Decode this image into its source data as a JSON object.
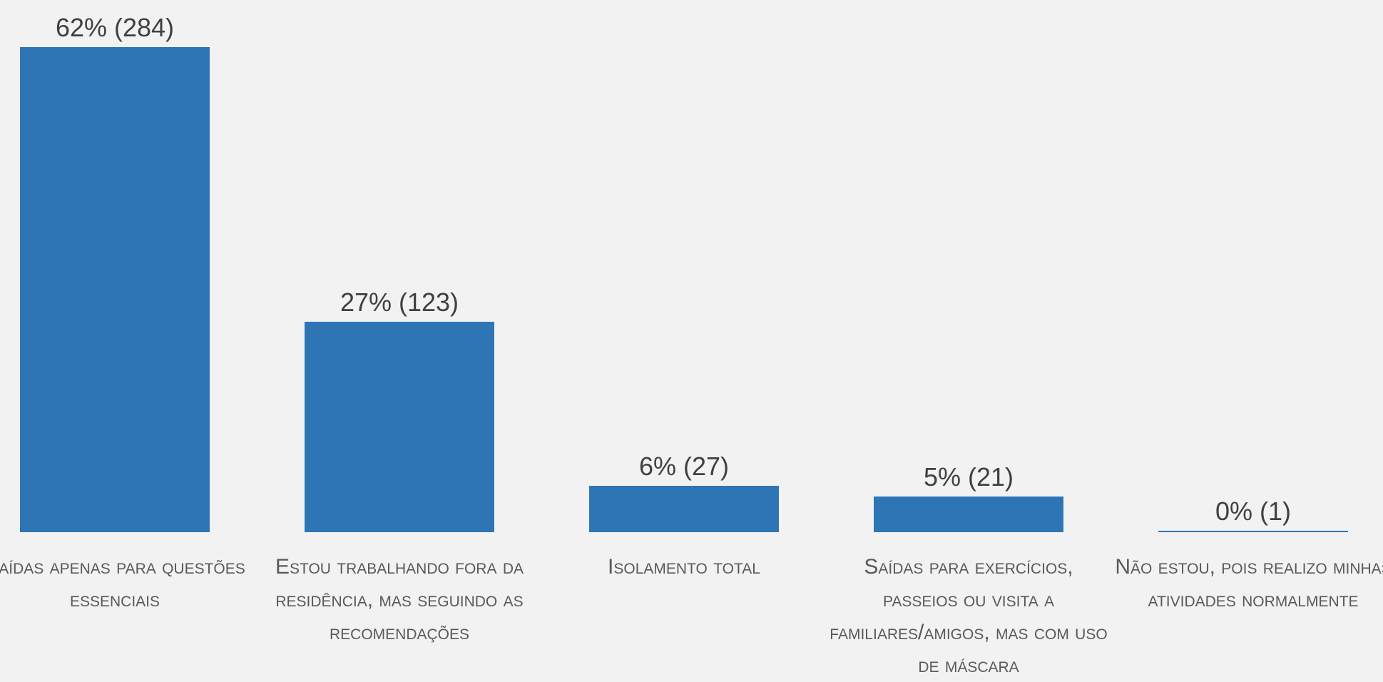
{
  "chart_data": {
    "type": "bar",
    "categories": [
      "Saídas apenas para questões essenciais",
      "Estou trabalhando fora da residência, mas seguindo as recomendações",
      "Isolamento total",
      "Saídas para exercícios, passeios ou visita a familiares/amigos, mas com uso de máscara",
      "Não estou, pois realizo minhas atividades normalmente"
    ],
    "values": [
      284,
      123,
      27,
      21,
      1
    ],
    "value_labels": [
      "62% (284)",
      "27% (123)",
      "6% (27)",
      "5% (21)",
      "0% (1)"
    ],
    "color": "#2e75b6"
  }
}
